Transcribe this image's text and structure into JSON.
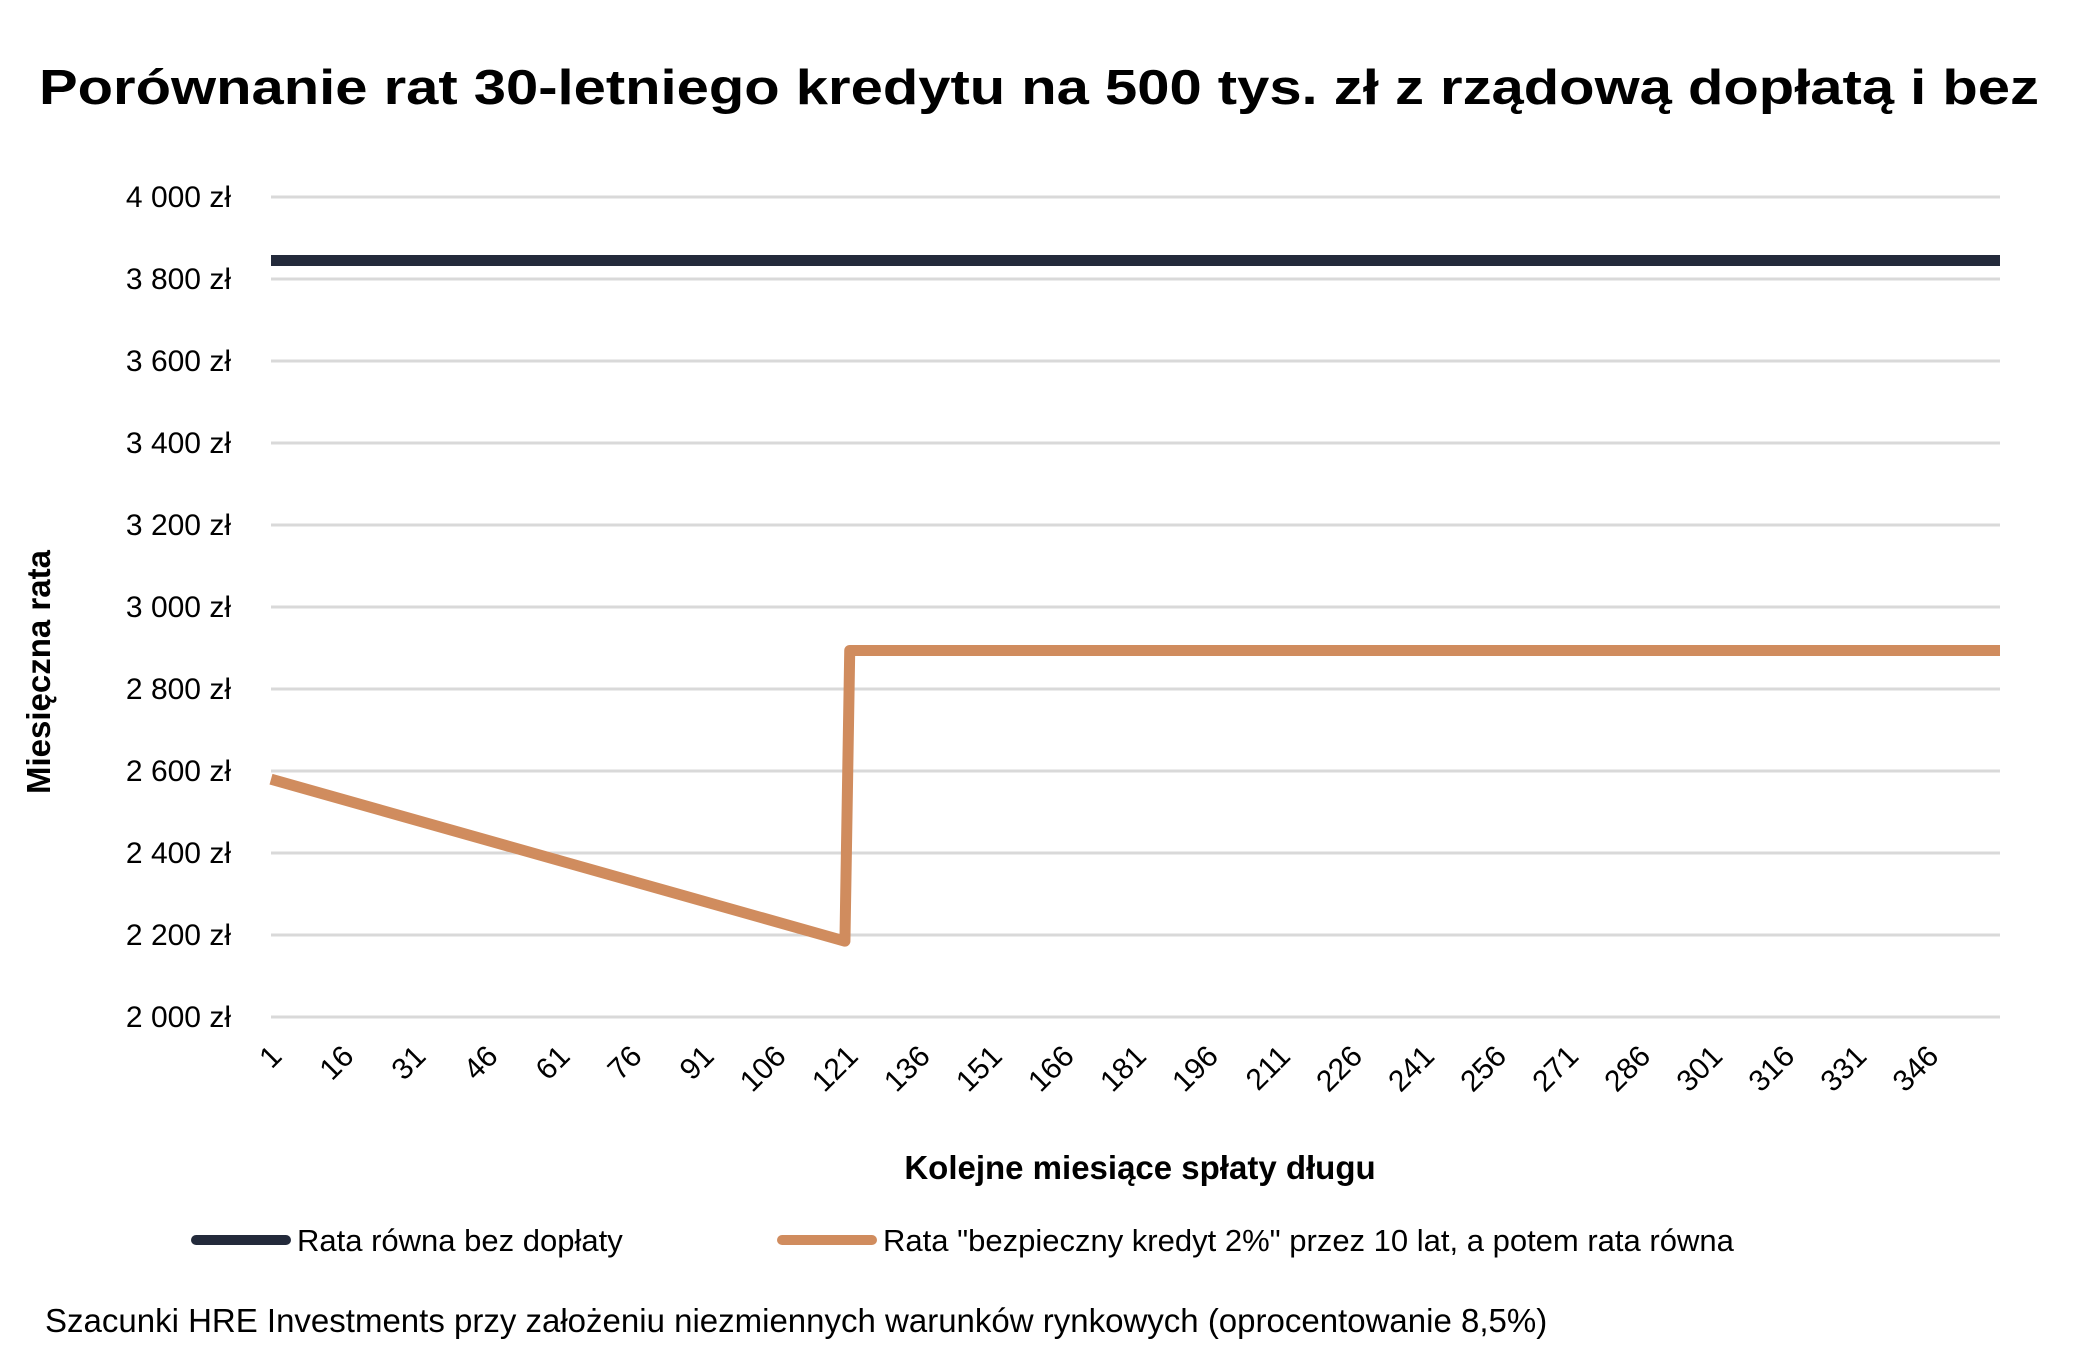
{
  "chart_data": {
    "type": "line",
    "title": "Porównanie rat 30-letniego kredytu na 500 tys. zł z rządową dopłatą i bez",
    "xlabel": "Kolejne miesiące spłaty długu",
    "ylabel": "Miesięczna rata",
    "ylim": [
      2000,
      4000
    ],
    "xlim": [
      1,
      360
    ],
    "grid": "horizontal",
    "legend_position": "bottom",
    "y_ticks": [
      "2 000 zł",
      "2 200 zł",
      "2 400 zł",
      "2 600 zł",
      "2 800 zł",
      "3 000 zł",
      "3 200 zł",
      "3 400 zł",
      "3 600 zł",
      "3 800 zł",
      "4 000 zł"
    ],
    "y_tick_values": [
      2000,
      2200,
      2400,
      2600,
      2800,
      3000,
      3200,
      3400,
      3600,
      3800,
      4000
    ],
    "x_ticks": [
      "1",
      "16",
      "31",
      "46",
      "61",
      "76",
      "91",
      "106",
      "121",
      "136",
      "151",
      "166",
      "181",
      "196",
      "211",
      "226",
      "241",
      "256",
      "271",
      "286",
      "301",
      "316",
      "331",
      "346"
    ],
    "series": [
      {
        "name": "Rata równa bez dopłaty",
        "color": "#232a3b",
        "x": [
          1,
          360
        ],
        "y": [
          3845,
          3845
        ]
      },
      {
        "name": "Rata \"bezpieczny kredyt 2%\" przez 10 lat, a potem rata równa",
        "color": "#d08c5e",
        "x": [
          1,
          120,
          121,
          360
        ],
        "y": [
          2580,
          2185,
          2894,
          2894
        ]
      }
    ],
    "footnote": "Szacunki HRE Investments przy założeniu niezmiennych warunków rynkowych (oprocentowanie 8,5%)"
  }
}
